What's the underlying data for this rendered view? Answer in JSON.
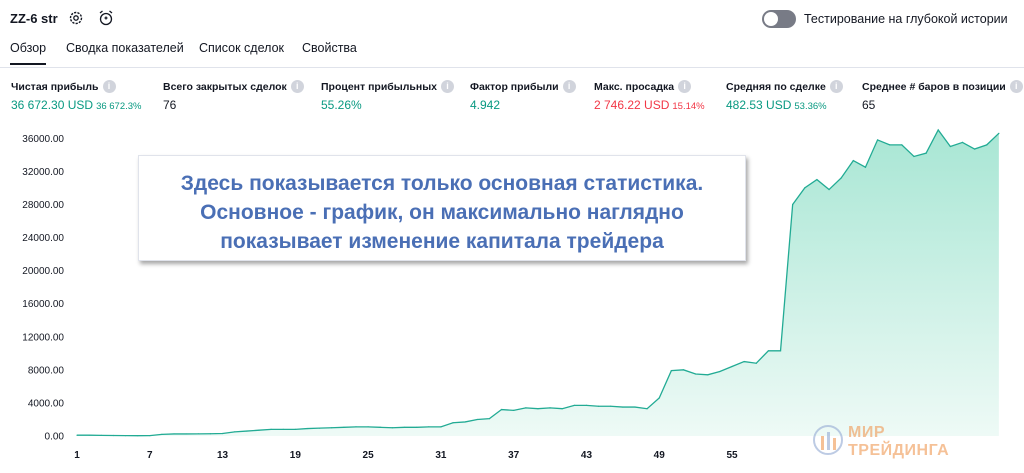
{
  "strategy": {
    "name": "ZZ-6 str"
  },
  "deep_history": {
    "label": "Тестирование на глубокой истории",
    "enabled": false
  },
  "tabs": [
    {
      "label": "Обзор",
      "active": true
    },
    {
      "label": "Сводка показателей",
      "active": false
    },
    {
      "label": "Список сделок",
      "active": false
    },
    {
      "label": "Свойства",
      "active": false
    }
  ],
  "metrics": [
    {
      "label": "Чистая прибыль",
      "value": "36 672.30 USD",
      "pct": "36 672.3%",
      "color": "green"
    },
    {
      "label": "Всего закрытых сделок",
      "value": "76",
      "pct": "",
      "color": "plain"
    },
    {
      "label": "Процент прибыльных",
      "value": "55.26%",
      "pct": "",
      "color": "green"
    },
    {
      "label": "Фактор прибыли",
      "value": "4.942",
      "pct": "",
      "color": "green"
    },
    {
      "label": "Макс. просадка",
      "value": "2 746.22 USD",
      "pct": "15.14%",
      "color": "red"
    },
    {
      "label": "Средняя по сделке",
      "value": "482.53 USD",
      "pct": "53.36%",
      "color": "green"
    },
    {
      "label": "Среднее # баров в позиции",
      "value": "65",
      "pct": "",
      "color": "plain"
    }
  ],
  "callout": {
    "lines": [
      "Здесь показывается только основная статистика.",
      "Основное - график, он максимально наглядно",
      "показывает изменение капитала трейдера"
    ]
  },
  "watermark": {
    "line1": "МИР",
    "line2": "ТРЕЙДИНГА"
  },
  "colors": {
    "line": "#22ab94",
    "fill_top": "#a8e6d4",
    "fill_bottom": "#eefaf6",
    "accent_text": "#4a6fb5"
  },
  "icons": {
    "settings": "gear-icon",
    "alert": "alarm-clock-icon"
  },
  "chart_data": {
    "type": "area",
    "xlim": [
      1,
      78
    ],
    "ylim": [
      0,
      37000
    ],
    "y_ticks": [
      0,
      4000,
      8000,
      12000,
      16000,
      20000,
      24000,
      28000,
      32000,
      36000
    ],
    "y_tick_labels": [
      "0.00",
      "4000.00",
      "8000.00",
      "12000.00",
      "16000.00",
      "20000.00",
      "24000.00",
      "28000.00",
      "32000.00",
      "36000.00"
    ],
    "x_ticks": [
      1,
      7,
      13,
      19,
      25,
      31,
      37,
      43,
      49,
      55
    ],
    "x": [
      1,
      2,
      3,
      4,
      5,
      6,
      7,
      8,
      9,
      10,
      11,
      12,
      13,
      14,
      15,
      16,
      17,
      18,
      19,
      20,
      21,
      22,
      23,
      24,
      25,
      26,
      27,
      28,
      29,
      30,
      31,
      32,
      33,
      34,
      35,
      36,
      37,
      38,
      39,
      40,
      41,
      42,
      43,
      44,
      45,
      46,
      47,
      48,
      49,
      50,
      51,
      52,
      53,
      54,
      55,
      56,
      57,
      58,
      59,
      60,
      61,
      62,
      63,
      64,
      65,
      66,
      67,
      68,
      69,
      70,
      71,
      72,
      73,
      74,
      75,
      76,
      77
    ],
    "y": [
      100,
      100,
      80,
      60,
      50,
      40,
      50,
      200,
      250,
      250,
      260,
      270,
      300,
      500,
      600,
      700,
      800,
      800,
      800,
      900,
      950,
      1000,
      1050,
      1100,
      1100,
      1050,
      1000,
      1050,
      1050,
      1100,
      1100,
      1600,
      1700,
      2000,
      2100,
      3200,
      3100,
      3400,
      3300,
      3400,
      3300,
      3700,
      3700,
      3600,
      3600,
      3500,
      3500,
      3300,
      4600,
      7900,
      8000,
      7500,
      7400,
      7800,
      8400,
      9000,
      8800,
      10300,
      10300,
      28000,
      30000,
      31000,
      29800,
      31200,
      33300,
      32500,
      35800,
      35200,
      35200,
      33800,
      34200,
      37000,
      35000,
      35500,
      34700,
      35200,
      36600
    ]
  }
}
